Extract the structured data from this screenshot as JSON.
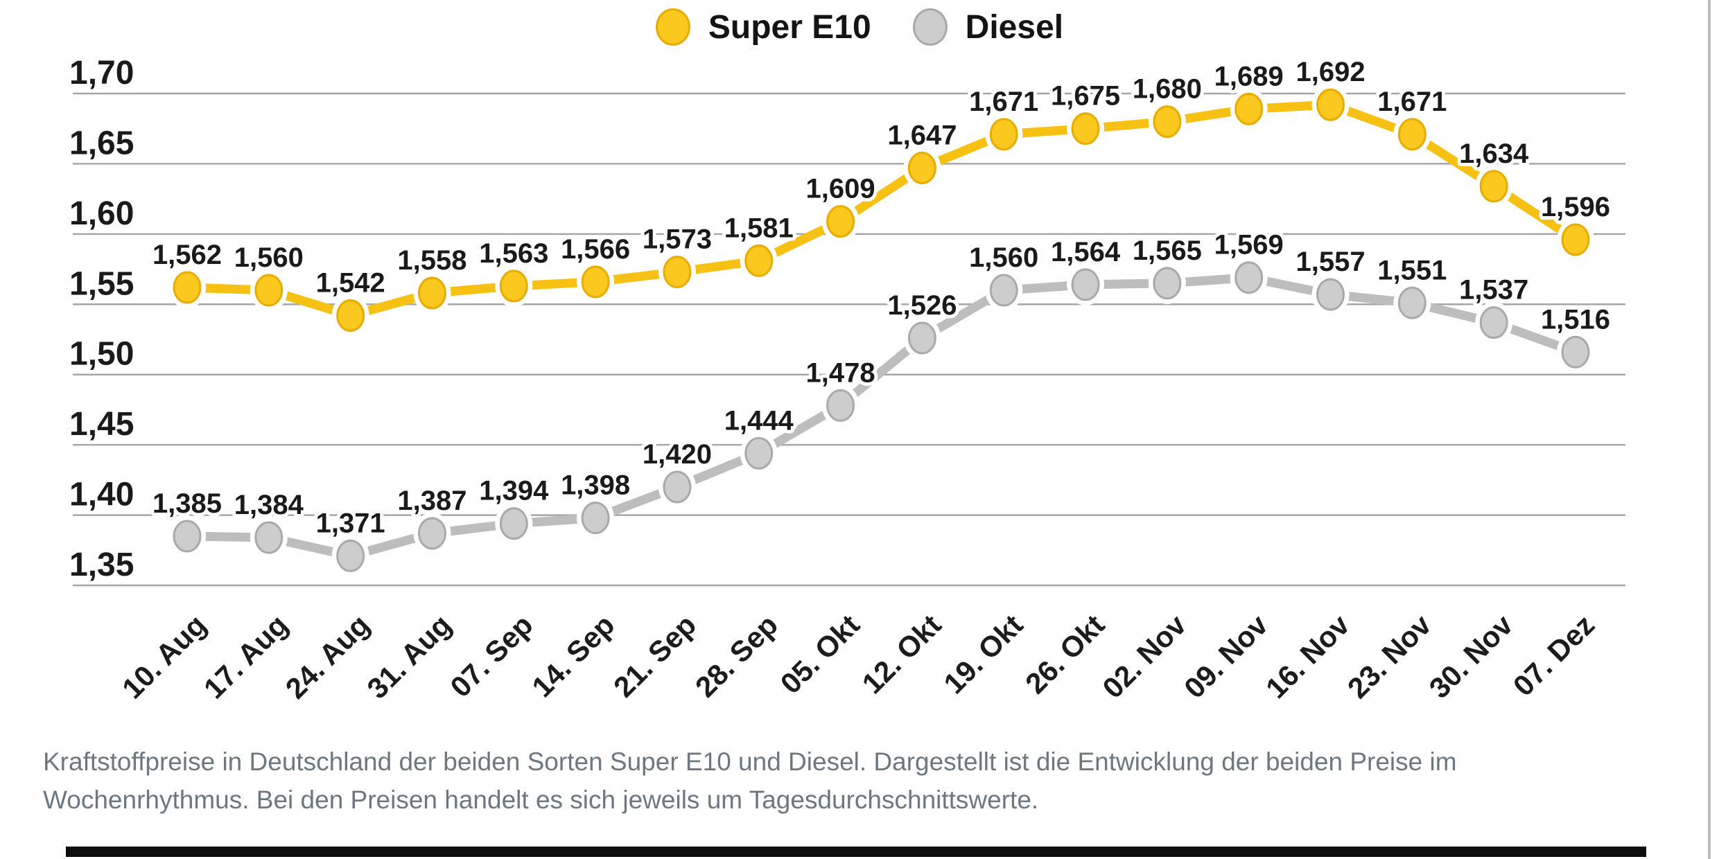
{
  "legend": {
    "items": [
      {
        "label": "Super E10"
      },
      {
        "label": "Diesel"
      }
    ]
  },
  "chart_data": {
    "type": "line",
    "title": "",
    "xlabel": "",
    "ylabel": "",
    "x_categories": [
      "10. Aug",
      "17. Aug",
      "24. Aug",
      "31. Aug",
      "07. Sep",
      "14. Sep",
      "21. Sep",
      "28. Sep",
      "05. Okt",
      "12. Okt",
      "19. Okt",
      "26. Okt",
      "02. Nov",
      "09. Nov",
      "16. Nov",
      "23. Nov",
      "30. Nov",
      "07. Dez"
    ],
    "ylim": [
      1.35,
      1.7
    ],
    "yticks": {
      "values": [
        1.7,
        1.65,
        1.6,
        1.55,
        1.5,
        1.45,
        1.4,
        1.35
      ],
      "labels": [
        "1,70",
        "1,65",
        "1,60",
        "1,55",
        "1,50",
        "1,45",
        "1,40",
        "1,35"
      ]
    },
    "grid": true,
    "legend_position": "top-center",
    "series": [
      {
        "name": "Super E10",
        "line_color": "#F7C113",
        "dot_fill": "#FAC81E",
        "dot_border": "#E8AC00",
        "values": [
          1.562,
          1.56,
          1.542,
          1.558,
          1.563,
          1.566,
          1.573,
          1.581,
          1.609,
          1.647,
          1.671,
          1.675,
          1.68,
          1.689,
          1.692,
          1.671,
          1.634,
          1.596
        ],
        "point_labels": [
          "1,562",
          "1,560",
          "1,542",
          "1,558",
          "1,563",
          "1,566",
          "1,573",
          "1,581",
          "1,609",
          "1,647",
          "1,671",
          "1,675",
          "1,680",
          "1,689",
          "1,692",
          "1,671",
          "1,634",
          "1,596"
        ]
      },
      {
        "name": "Diesel",
        "line_color": "#BDBDBD",
        "dot_fill": "#CDCDCD",
        "dot_border": "#A9A9A9",
        "values": [
          1.385,
          1.384,
          1.371,
          1.387,
          1.394,
          1.398,
          1.42,
          1.444,
          1.478,
          1.526,
          1.56,
          1.564,
          1.565,
          1.569,
          1.557,
          1.551,
          1.537,
          1.516
        ],
        "point_labels": [
          "1,385",
          "1,384",
          "1,371",
          "1,387",
          "1,394",
          "1,398",
          "1,420",
          "1,444",
          "1,478",
          "1,526",
          "1,560",
          "1,564",
          "1,565",
          "1,569",
          "1,557",
          "1,551",
          "1,537",
          "1,516"
        ]
      }
    ]
  },
  "caption": {
    "line1": "Kraftstoffpreise in Deutschland der beiden Sorten Super E10 und Diesel. Dargestellt ist die Entwicklung der beiden Preise im",
    "line2": "Wochenrhythmus. Bei den Preisen handelt es sich jeweils um Tagesdurchschnittswerte."
  },
  "colors": {
    "grid_line": "#A6A6A6",
    "axis_text": "#1A1A1A",
    "caption_text": "#6C7780",
    "bottom_bar": "#0E0E0E"
  }
}
